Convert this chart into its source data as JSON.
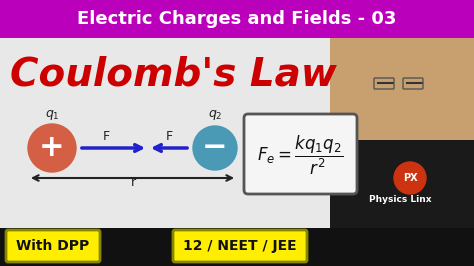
{
  "title_text": "Electric Charges and Fields - 03",
  "title_bg": "#bb00bb",
  "title_color": "#ffffff",
  "subtitle": "Coulomb's Law",
  "subtitle_color": "#cc0000",
  "bg_color": "#ffffff",
  "q1_label": "$q_1$",
  "q2_label": "$q_2$",
  "plus_color": "#d45f45",
  "minus_color": "#4a9ab5",
  "arrow_color": "#2222cc",
  "r_label": "r",
  "F_label": "F",
  "formula_box_color": "#f5f5f5",
  "formula_box_edge": "#555555",
  "tag1_text": "With DPP",
  "tag2_text": "12 / NEET / JEE",
  "tag_bg": "#ffee00",
  "tag_color": "#111111",
  "person_bg": "#c8a87a",
  "person_shirt": "#111111",
  "px_circle_color": "#cc3311",
  "content_bg": "#ffffff",
  "bottom_bg": "#111111"
}
